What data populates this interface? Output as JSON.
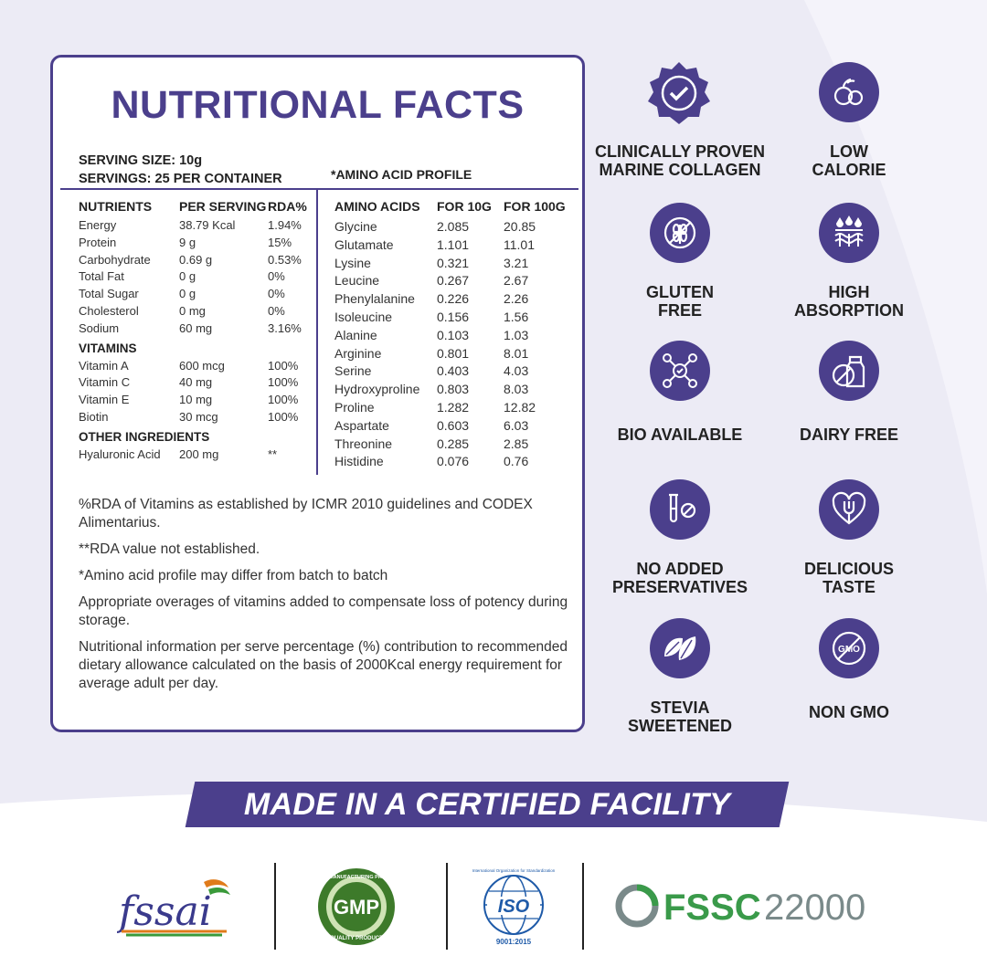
{
  "card": {
    "title": "NUTRITIONAL FACTS",
    "serving_size": "SERVING SIZE: 10g",
    "servings": "SERVINGS: 25 PER CONTAINER",
    "amino_profile_label": "*AMINO ACID PROFILE"
  },
  "nutrients": {
    "headers": [
      "NUTRIENTS",
      "PER SERVING",
      "RDA%"
    ],
    "rows": [
      [
        "Energy",
        "38.79 Kcal",
        "1.94%"
      ],
      [
        "Protein",
        "9 g",
        "15%"
      ],
      [
        "Carbohydrate",
        "0.69 g",
        "0.53%"
      ],
      [
        "Total Fat",
        "0 g",
        "0%"
      ],
      [
        "Total Sugar",
        "0 g",
        "0%"
      ],
      [
        "Cholesterol",
        "0 mg",
        "0%"
      ],
      [
        "Sodium",
        "60 mg",
        "3.16%"
      ]
    ],
    "vitamins_heading": "VITAMINS",
    "vitamins": [
      [
        "Vitamin A",
        "600 mcg",
        "100%"
      ],
      [
        "Vitamin C",
        "40 mg",
        "100%"
      ],
      [
        "Vitamin E",
        "10 mg",
        "100%"
      ],
      [
        "Biotin",
        "30 mcg",
        "100%"
      ]
    ],
    "other_heading": "OTHER INGREDIENTS",
    "other": [
      [
        "Hyaluronic Acid",
        "200 mg",
        "**"
      ]
    ]
  },
  "amino": {
    "headers": [
      "AMINO ACIDS",
      "FOR 10G",
      "FOR 100G"
    ],
    "rows": [
      [
        "Glycine",
        "2.085",
        "20.85"
      ],
      [
        "Glutamate",
        "1.101",
        "11.01"
      ],
      [
        "Lysine",
        "0.321",
        "3.21"
      ],
      [
        "Leucine",
        "0.267",
        "2.67"
      ],
      [
        "Phenylalanine",
        "0.226",
        "2.26"
      ],
      [
        "Isoleucine",
        "0.156",
        "1.56"
      ],
      [
        "Alanine",
        "0.103",
        "1.03"
      ],
      [
        "Arginine",
        "0.801",
        "8.01"
      ],
      [
        "Serine",
        "0.403",
        "4.03"
      ],
      [
        "Hydroxyproline",
        "0.803",
        "8.03"
      ],
      [
        "Proline",
        "1.282",
        "12.82"
      ],
      [
        "Aspartate",
        "0.603",
        "6.03"
      ],
      [
        "Threonine",
        "0.285",
        "2.85"
      ],
      [
        "Histidine",
        "0.076",
        "0.76"
      ]
    ]
  },
  "notes": [
    "%RDA of Vitamins as established by ICMR 2010 guidelines and CODEX Alimentarius.",
    "**RDA value not established.",
    "*Amino acid profile may differ from batch to batch",
    "Appropriate overages of vitamins added to compensate loss of potency during storage.",
    "Nutritional information per serve percentage (%) contribution to recommended dietary allowance calculated on the basis of 2000Kcal energy requirement for average adult per day."
  ],
  "features": [
    {
      "label": "CLINICALLY PROVEN\nMARINE COLLAGEN",
      "icon": "check-badge-icon"
    },
    {
      "label": "LOW\nCALORIE",
      "icon": "fruit-icon"
    },
    {
      "label": "GLUTEN\nFREE",
      "icon": "wheat-crossed-icon"
    },
    {
      "label": "HIGH\nABSORPTION",
      "icon": "absorption-icon"
    },
    {
      "label": "BIO AVAILABLE",
      "icon": "molecule-icon"
    },
    {
      "label": "DAIRY FREE",
      "icon": "milk-crossed-icon"
    },
    {
      "label": "NO ADDED\nPRESERVATIVES",
      "icon": "test-tube-icon"
    },
    {
      "label": "DELICIOUS\nTASTE",
      "icon": "heart-fork-icon"
    },
    {
      "label": "STEVIA\nSWEETENED",
      "icon": "leaf-icon"
    },
    {
      "label": "NON GMO",
      "icon": "gmo-crossed-icon"
    }
  ],
  "banner": "MADE IN A CERTIFIED FACILITY",
  "logos": {
    "fssai": "fssai",
    "gmp": "GMP",
    "gmp_top": "GOOD MANUFACTURING PRACTICE",
    "gmp_bottom": "QUALITY PRODUCT",
    "iso": "ISO",
    "iso_ring": "International Organization for Standardization",
    "iso_code": "9001:2015",
    "fssc": "FSSC",
    "fssc_num": "22000"
  },
  "colors": {
    "accent": "#4b3f8c",
    "background": "#ecebf5"
  }
}
